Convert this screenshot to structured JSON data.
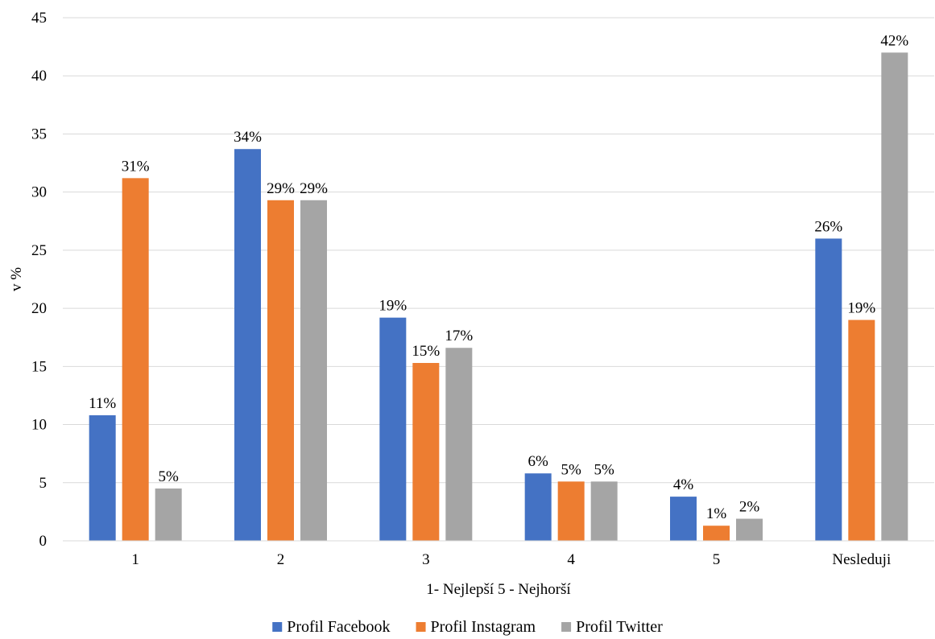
{
  "chart_data": {
    "type": "bar",
    "categories": [
      "1",
      "2",
      "3",
      "4",
      "5",
      "Nesleduji"
    ],
    "series": [
      {
        "name": "Profil Facebook",
        "color": "#4472C4",
        "values": [
          10.8,
          33.7,
          19.2,
          5.8,
          3.8,
          26.0
        ],
        "labels": [
          "11%",
          "34%",
          "19%",
          "6%",
          "4%",
          "26%"
        ]
      },
      {
        "name": "Profil Instagram",
        "color": "#ED7D31",
        "values": [
          31.2,
          29.3,
          15.3,
          5.1,
          1.3,
          19.0
        ],
        "labels": [
          "31%",
          "29%",
          "15%",
          "5%",
          "1%",
          "19%"
        ]
      },
      {
        "name": "Profil Twitter",
        "color": "#A5A5A5",
        "values": [
          4.5,
          29.3,
          16.6,
          5.1,
          1.9,
          42.0
        ],
        "labels": [
          "5%",
          "29%",
          "17%",
          "5%",
          "2%",
          "42%"
        ]
      }
    ],
    "xlabel": "1- Nejlepší 5 - Nejhorší",
    "ylabel": "v %",
    "ylim": [
      0,
      45
    ],
    "yticks": [
      "0",
      "5",
      "10",
      "15",
      "20",
      "25",
      "30",
      "35",
      "40",
      "45"
    ],
    "grid": true,
    "legend": "bottom"
  }
}
